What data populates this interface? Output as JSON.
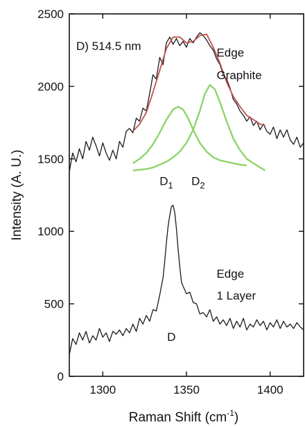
{
  "chart_data": {
    "type": "line",
    "panel_label": "D) 514.5 nm",
    "xlabel": "Raman Shift (cm",
    "xlabel_sup": "-1",
    "xlabel_close": ")",
    "ylabel": "Intensity (A. U.)",
    "xlim": [
      1280,
      1420
    ],
    "ylim": [
      0,
      2500
    ],
    "xticks": [
      1300,
      1350,
      1400
    ],
    "yticks": [
      0,
      500,
      1000,
      1500,
      2000,
      2500
    ],
    "grid": false,
    "colors": {
      "data": "#1a1a1a",
      "fit": "#c0504d",
      "components": "#8ed46a"
    },
    "series": [
      {
        "role": "data",
        "x": [
          1280,
          1282,
          1284,
          1286,
          1288,
          1290,
          1292,
          1294,
          1296,
          1298,
          1300,
          1302,
          1304,
          1306,
          1308,
          1310,
          1312,
          1314,
          1316,
          1318,
          1320,
          1322,
          1324,
          1326,
          1328,
          1330,
          1332,
          1334,
          1336,
          1338,
          1340,
          1342,
          1344,
          1346,
          1348,
          1350,
          1352,
          1354,
          1356,
          1358,
          1360,
          1362,
          1364,
          1366,
          1368,
          1370,
          1372,
          1374,
          1376,
          1378,
          1380,
          1382,
          1384,
          1386,
          1388,
          1390,
          1392,
          1394,
          1396,
          1398,
          1400,
          1402,
          1404,
          1406,
          1408,
          1410,
          1412,
          1414,
          1416,
          1418,
          1420
        ],
        "y": [
          1410,
          1540,
          1480,
          1570,
          1500,
          1620,
          1560,
          1650,
          1590,
          1520,
          1610,
          1540,
          1490,
          1560,
          1500,
          1620,
          1580,
          1690,
          1710,
          1680,
          1780,
          1760,
          1850,
          1830,
          1950,
          2080,
          2050,
          2200,
          2150,
          2300,
          2340,
          2290,
          2330,
          2280,
          2310,
          2270,
          2330,
          2300,
          2340,
          2370,
          2350,
          2320,
          2280,
          2250,
          2190,
          2150,
          2080,
          2050,
          1990,
          1910,
          1880,
          1830,
          1800,
          1760,
          1790,
          1730,
          1760,
          1700,
          1740,
          1690,
          1670,
          1720,
          1640,
          1700,
          1650,
          1700,
          1630,
          1600,
          1650,
          1580,
          1610
        ]
      },
      {
        "role": "data",
        "x": [
          1280,
          1282,
          1284,
          1286,
          1288,
          1290,
          1292,
          1294,
          1296,
          1298,
          1300,
          1302,
          1304,
          1306,
          1308,
          1310,
          1312,
          1314,
          1316,
          1318,
          1320,
          1322,
          1324,
          1326,
          1328,
          1330,
          1332,
          1334,
          1336,
          1337,
          1338,
          1339,
          1340,
          1341,
          1342,
          1343,
          1344,
          1345,
          1346,
          1347,
          1348,
          1350,
          1352,
          1354,
          1356,
          1358,
          1360,
          1362,
          1364,
          1366,
          1368,
          1370,
          1372,
          1374,
          1376,
          1378,
          1380,
          1382,
          1384,
          1386,
          1388,
          1390,
          1392,
          1394,
          1396,
          1398,
          1400,
          1402,
          1404,
          1406,
          1408,
          1410,
          1412,
          1414,
          1416,
          1418,
          1420
        ],
        "y": [
          150,
          260,
          220,
          300,
          250,
          310,
          230,
          280,
          250,
          330,
          270,
          300,
          240,
          310,
          290,
          320,
          280,
          330,
          300,
          360,
          310,
          400,
          360,
          420,
          380,
          460,
          450,
          560,
          680,
          790,
          920,
          1030,
          1110,
          1170,
          1180,
          1130,
          1020,
          880,
          760,
          650,
          620,
          570,
          580,
          510,
          500,
          430,
          440,
          410,
          460,
          380,
          410,
          360,
          390,
          350,
          400,
          330,
          380,
          340,
          400,
          320,
          360,
          340,
          390,
          350,
          380,
          320,
          370,
          340,
          390,
          330,
          380,
          340,
          360,
          330,
          370,
          340,
          320
        ]
      },
      {
        "role": "fit",
        "x": [
          1318,
          1322,
          1326,
          1330,
          1334,
          1338,
          1342,
          1346,
          1350,
          1354,
          1358,
          1362,
          1366,
          1370,
          1374,
          1378,
          1382,
          1386,
          1390,
          1394,
          1397
        ],
        "y": [
          1690,
          1740,
          1820,
          1960,
          2110,
          2260,
          2340,
          2340,
          2300,
          2310,
          2350,
          2360,
          2270,
          2160,
          2030,
          1930,
          1860,
          1800,
          1770,
          1740,
          1730
        ]
      },
      {
        "role": "component",
        "x": [
          1318,
          1322,
          1326,
          1330,
          1334,
          1338,
          1342,
          1345,
          1348,
          1351,
          1354,
          1358,
          1362,
          1366,
          1370,
          1374,
          1378,
          1382,
          1386
        ],
        "y": [
          1470,
          1500,
          1540,
          1600,
          1680,
          1770,
          1840,
          1860,
          1840,
          1780,
          1700,
          1610,
          1550,
          1510,
          1490,
          1480,
          1470,
          1460,
          1455
        ]
      },
      {
        "role": "component",
        "x": [
          1318,
          1322,
          1326,
          1330,
          1334,
          1338,
          1342,
          1346,
          1350,
          1354,
          1358,
          1361,
          1364,
          1367,
          1370,
          1374,
          1378,
          1382,
          1386,
          1390,
          1394,
          1397
        ],
        "y": [
          1420,
          1425,
          1430,
          1440,
          1460,
          1480,
          1510,
          1550,
          1610,
          1700,
          1830,
          1950,
          2010,
          1980,
          1890,
          1760,
          1640,
          1560,
          1500,
          1470,
          1440,
          1420
        ]
      }
    ],
    "annotations": [
      {
        "id": "edge-graphite-1",
        "text": "Edge",
        "x": 1368,
        "y": 2205
      },
      {
        "id": "edge-graphite-2",
        "text": "Graphite",
        "x": 1368,
        "y": 2050
      },
      {
        "id": "edge-layer-1",
        "text": "Edge",
        "x": 1368,
        "y": 680
      },
      {
        "id": "edge-layer-2",
        "text": "1 Layer",
        "x": 1368,
        "y": 530
      },
      {
        "id": "peak-d",
        "text": "D",
        "x": 1341,
        "y": 245
      }
    ],
    "sub_annotations": [
      {
        "id": "peak-d1",
        "base": "D",
        "sub": "1",
        "x": 1338,
        "y": 1320
      },
      {
        "id": "peak-d2",
        "base": "D",
        "sub": "2",
        "x": 1357,
        "y": 1320
      }
    ]
  }
}
